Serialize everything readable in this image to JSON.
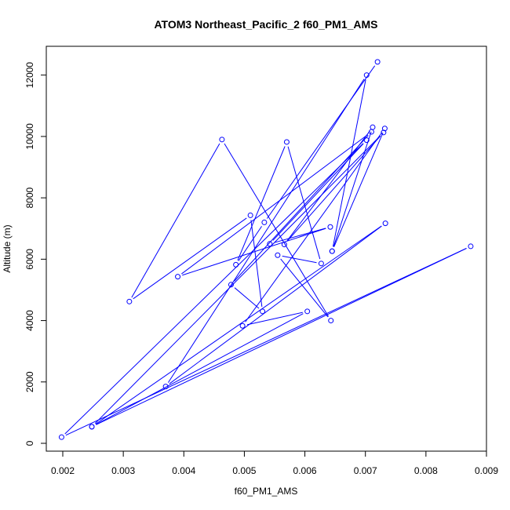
{
  "chart_data": {
    "type": "line",
    "title": "ATOM3 Northeast_Pacific_2 f60_PM1_AMS",
    "xlabel": "f60_PM1_AMS",
    "ylabel": "Altitude (m)",
    "xlim": [
      0.002,
      0.009
    ],
    "ylim": [
      0,
      12000
    ],
    "x_ticks": [
      0.002,
      0.003,
      0.004,
      0.005,
      0.006,
      0.007,
      0.008,
      0.009
    ],
    "x_tick_labels": [
      "0.002",
      "0.003",
      "0.004",
      "0.005",
      "0.006",
      "0.007",
      "0.008",
      "0.009"
    ],
    "y_ticks": [
      0,
      2000,
      4000,
      6000,
      8000,
      10000,
      12000
    ],
    "y_tick_labels": [
      "0",
      "2000",
      "4000",
      "6000",
      "8000",
      "10000",
      "12000"
    ],
    "grid": false,
    "series": [
      {
        "color": "#0000ff",
        "marker": "open-circle",
        "points": [
          {
            "x": 0.0072,
            "y": 12430
          },
          {
            "x": 0.00533,
            "y": 7200
          },
          {
            "x": 0.00486,
            "y": 5820
          },
          {
            "x": 0.0057,
            "y": 9820
          },
          {
            "x": 0.00627,
            "y": 5860
          },
          {
            "x": 0.00555,
            "y": 6130
          },
          {
            "x": 0.00643,
            "y": 4000
          },
          {
            "x": 0.00463,
            "y": 9900
          },
          {
            "x": 0.0031,
            "y": 4620
          },
          {
            "x": 0.0051,
            "y": 7430
          },
          {
            "x": 0.0053,
            "y": 4300
          },
          {
            "x": 0.00478,
            "y": 5170
          },
          {
            "x": 0.0071,
            "y": 10150
          },
          {
            "x": 0.0039,
            "y": 5430
          },
          {
            "x": 0.00642,
            "y": 7050
          },
          {
            "x": 0.00542,
            "y": 6500
          },
          {
            "x": 0.00702,
            "y": 9880
          },
          {
            "x": 0.00198,
            "y": 200
          },
          {
            "x": 0.00874,
            "y": 6420
          },
          {
            "x": 0.00248,
            "y": 540
          },
          {
            "x": 0.00733,
            "y": 7170
          },
          {
            "x": 0.0037,
            "y": 1850
          },
          {
            "x": 0.00702,
            "y": 12000
          },
          {
            "x": 0.00645,
            "y": 6260
          },
          {
            "x": 0.00712,
            "y": 10300
          },
          {
            "x": 0.00566,
            "y": 6480
          },
          {
            "x": 0.0073,
            "y": 10130
          },
          {
            "x": 0.00248,
            "y": 540
          },
          {
            "x": 0.00604,
            "y": 4300
          },
          {
            "x": 0.00497,
            "y": 3830
          },
          {
            "x": 0.00732,
            "y": 10260
          },
          {
            "x": 0.00645,
            "y": 6260
          }
        ]
      }
    ]
  }
}
